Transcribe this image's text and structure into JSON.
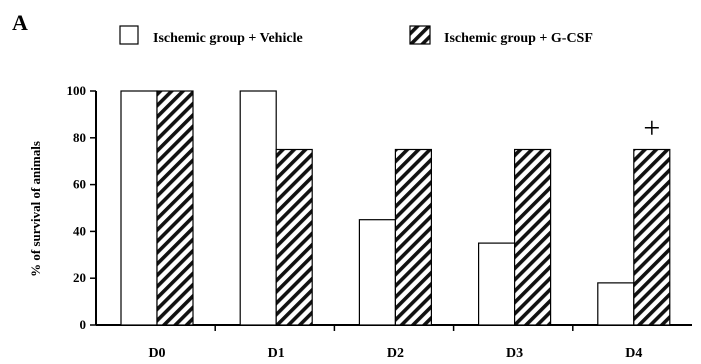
{
  "panel_label": "A",
  "colors": {
    "vehicle_fill": "#ffffff",
    "gcsf_fill": "#ffffff",
    "hatch": "#111111",
    "axis": "#000000"
  },
  "chart_data": {
    "type": "bar",
    "title": "",
    "xlabel": "",
    "ylabel": "% of survival of animals",
    "categories": [
      "D0",
      "D1",
      "D2",
      "D3",
      "D4"
    ],
    "series": [
      {
        "name": "Ischemic group + Vehicle",
        "pattern": "solid",
        "values": [
          100,
          100,
          45,
          35,
          18
        ]
      },
      {
        "name": "Ischemic group + G-CSF",
        "pattern": "hatched",
        "values": [
          100,
          75,
          75,
          75,
          75
        ]
      }
    ],
    "ylim": [
      0,
      100
    ],
    "yticks": [
      "0",
      "20",
      "40",
      "60",
      "80",
      "100"
    ],
    "legend_position": "top",
    "annotation": {
      "text": "+",
      "category": "D4",
      "series": "Ischemic group + G-CSF"
    },
    "grid": false
  }
}
